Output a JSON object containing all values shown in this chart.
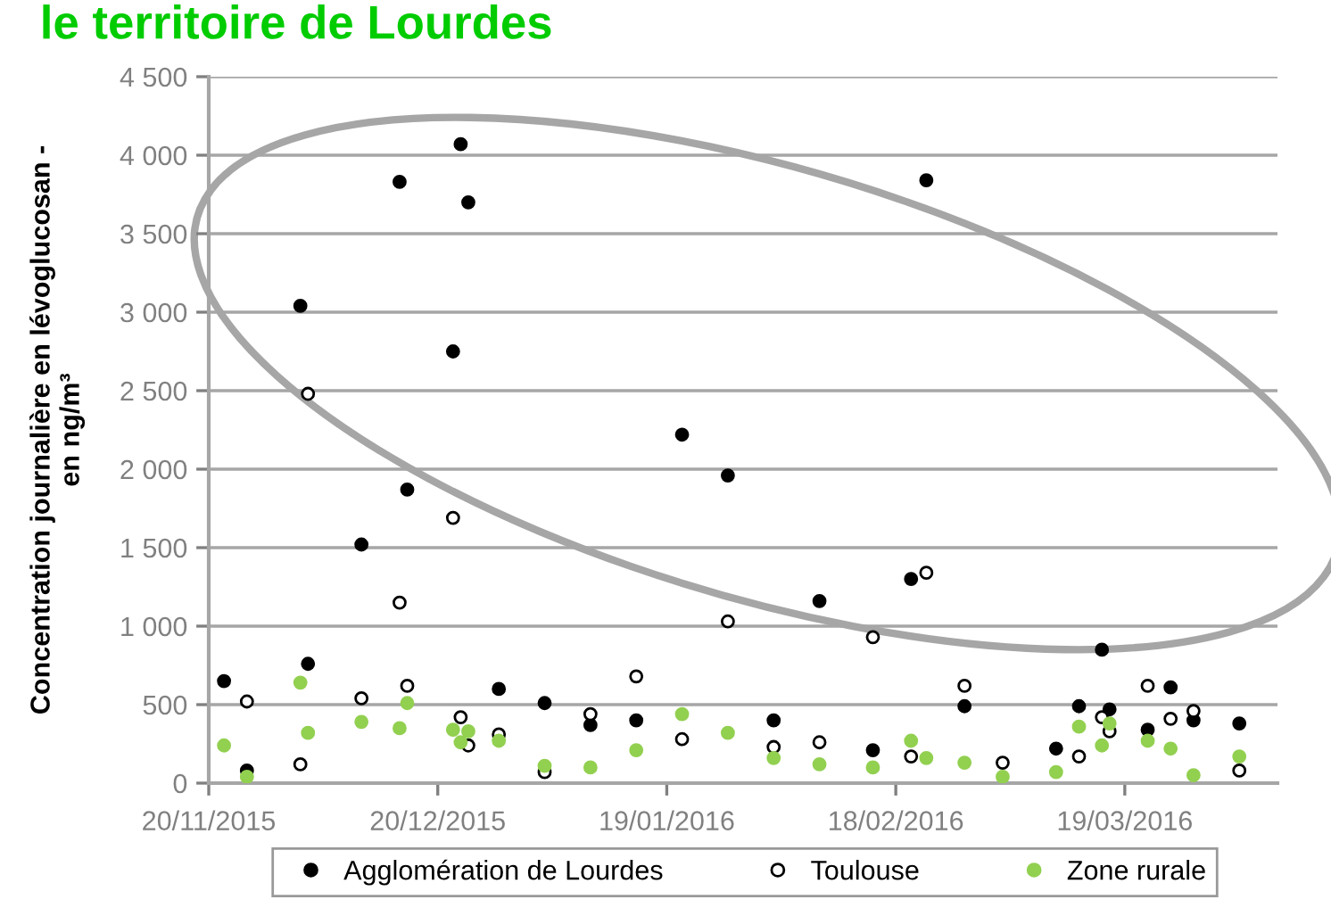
{
  "chart_data": {
    "type": "scatter",
    "title": "le territoire de Lourdes",
    "ylabel": "Concentration journalière en lévoglucosan -\nen ng/m³",
    "xlim": [
      "2015-11-20",
      "2016-04-08"
    ],
    "xticks": [
      {
        "value": "2015-11-20",
        "label": "20/11/2015"
      },
      {
        "value": "2015-12-20",
        "label": "20/12/2015"
      },
      {
        "value": "2016-01-19",
        "label": "19/01/2016"
      },
      {
        "value": "2016-02-18",
        "label": "18/02/2016"
      },
      {
        "value": "2016-03-19",
        "label": "19/03/2016"
      }
    ],
    "ylim": [
      0,
      4500
    ],
    "yticks": [
      0,
      500,
      {
        "value": 1000,
        "label": "1 000"
      },
      {
        "value": 1500,
        "label": "1 500"
      },
      {
        "value": 2000,
        "label": "2 000"
      },
      {
        "value": 2500,
        "label": "2 500"
      },
      {
        "value": 3000,
        "label": "3 000"
      },
      {
        "value": 3500,
        "label": "3 500"
      },
      {
        "value": 4000,
        "label": "4 000"
      },
      {
        "value": 4500,
        "label": "4 500"
      }
    ],
    "grid": "y",
    "legend": "bottom",
    "marker": "circle",
    "series": [
      {
        "name": "Agglomération de Lourdes",
        "color": "#000000",
        "x": [
          "2015-11-22",
          "2015-11-25",
          "2015-12-02",
          "2015-12-03",
          "2015-12-10",
          "2015-12-15",
          "2015-12-16",
          "2015-12-22",
          "2015-12-23",
          "2015-12-24",
          "2015-12-28",
          "2016-01-03",
          "2016-01-09",
          "2016-01-15",
          "2016-01-21",
          "2016-01-27",
          "2016-02-02",
          "2016-02-08",
          "2016-02-15",
          "2016-02-20",
          "2016-02-22",
          "2016-02-27",
          "2016-03-10",
          "2016-03-13",
          "2016-03-16",
          "2016-03-17",
          "2016-03-22",
          "2016-03-25",
          "2016-03-28",
          "2016-04-03"
        ],
        "values": [
          650,
          80,
          3040,
          760,
          1520,
          3830,
          1870,
          2750,
          4070,
          3700,
          600,
          510,
          370,
          400,
          2220,
          1960,
          400,
          1160,
          210,
          1300,
          3840,
          490,
          220,
          490,
          850,
          470,
          340,
          610,
          400,
          380
        ]
      },
      {
        "name": "Toulouse",
        "color": "#ffffff",
        "x": [
          "2015-11-25",
          "2015-12-02",
          "2015-12-03",
          "2015-12-10",
          "2015-12-15",
          "2015-12-16",
          "2015-12-22",
          "2015-12-23",
          "2015-12-24",
          "2015-12-28",
          "2016-01-03",
          "2016-01-09",
          "2016-01-15",
          "2016-01-21",
          "2016-01-27",
          "2016-02-02",
          "2016-02-08",
          "2016-02-15",
          "2016-02-20",
          "2016-02-22",
          "2016-02-27",
          "2016-03-03",
          "2016-03-13",
          "2016-03-16",
          "2016-03-17",
          "2016-03-22",
          "2016-03-25",
          "2016-03-28",
          "2016-04-03"
        ],
        "values": [
          520,
          120,
          2480,
          540,
          1150,
          620,
          1690,
          420,
          240,
          310,
          70,
          440,
          680,
          280,
          1030,
          230,
          260,
          930,
          170,
          1340,
          620,
          130,
          170,
          420,
          330,
          620,
          410,
          460,
          80
        ]
      },
      {
        "name": "Zone rurale",
        "color": "#92d050",
        "x": [
          "2015-11-22",
          "2015-11-25",
          "2015-12-02",
          "2015-12-03",
          "2015-12-10",
          "2015-12-15",
          "2015-12-16",
          "2015-12-22",
          "2015-12-23",
          "2015-12-24",
          "2015-12-28",
          "2016-01-03",
          "2016-01-09",
          "2016-01-15",
          "2016-01-21",
          "2016-01-27",
          "2016-02-02",
          "2016-02-08",
          "2016-02-15",
          "2016-02-20",
          "2016-02-22",
          "2016-02-27",
          "2016-03-03",
          "2016-03-10",
          "2016-03-13",
          "2016-03-16",
          "2016-03-17",
          "2016-03-22",
          "2016-03-25",
          "2016-03-28",
          "2016-04-03"
        ],
        "values": [
          240,
          40,
          640,
          320,
          390,
          350,
          510,
          340,
          260,
          330,
          270,
          110,
          100,
          210,
          440,
          320,
          160,
          120,
          100,
          270,
          160,
          130,
          40,
          70,
          360,
          240,
          380,
          270,
          220,
          50,
          170
        ]
      }
    ]
  }
}
